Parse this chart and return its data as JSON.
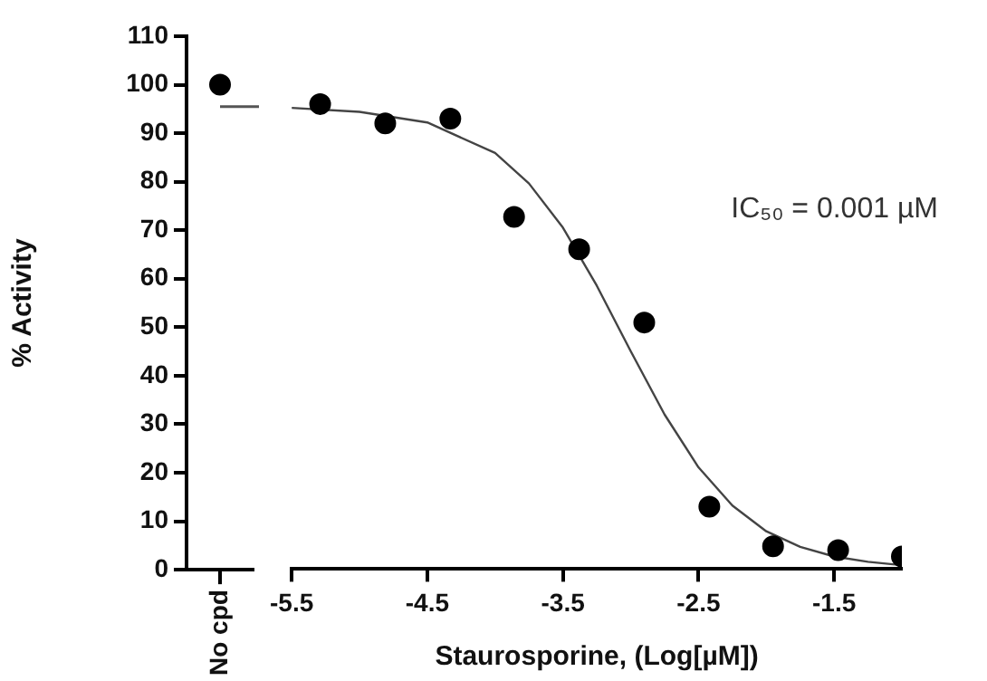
{
  "chart_data": [
    {
      "type": "scatter",
      "ylabel": "% Activity",
      "categories": [
        "No cpd"
      ],
      "values": [
        100
      ],
      "color": "#000000",
      "ylim": [
        0,
        110
      ],
      "yticks": [
        0,
        10,
        20,
        30,
        40,
        50,
        60,
        70,
        80,
        90,
        100,
        110
      ],
      "ref_lines": [
        {
          "axis": "y",
          "value": 95.5,
          "color": "#555555"
        }
      ],
      "grid": false,
      "legend": false,
      "marker": "circle"
    },
    {
      "type": "scatter",
      "xlabel": "Staurosporine, (Log[µM])",
      "xlim": [
        -5.5,
        -1
      ],
      "xticks": [
        -5.5,
        -4.5,
        -3.5,
        -2.5,
        -1.5
      ],
      "ylim": [
        0,
        110
      ],
      "tick_labels": "x",
      "grid": false,
      "legend": false,
      "marker": "circle",
      "annotations": [
        "IC₅₀ = 0.001 µM"
      ],
      "series": [
        {
          "type": "scatter",
          "color": "#000000",
          "x": [
            -5.29,
            -4.81,
            -4.33,
            -3.86,
            -3.38,
            -2.9,
            -2.42,
            -1.95,
            -1.47,
            -1.0
          ],
          "values": [
            96,
            92,
            93,
            72.7,
            66,
            50.9,
            12.9,
            4.7,
            3.9,
            2.6
          ]
        },
        {
          "type": "line",
          "color": "#444444",
          "marker": "none",
          "x": [
            -5.5,
            -5.0,
            -4.5,
            -4.0,
            -3.75,
            -3.5,
            -3.25,
            -3.0,
            -2.75,
            -2.5,
            -2.25,
            -2.0,
            -1.75,
            -1.5,
            -1.25,
            -1.0
          ],
          "values": [
            95.2,
            94.4,
            92.2,
            85.9,
            79.6,
            70.5,
            58.5,
            45.0,
            31.9,
            21.0,
            13.1,
            7.8,
            4.6,
            2.6,
            1.5,
            0.8
          ]
        }
      ]
    }
  ]
}
